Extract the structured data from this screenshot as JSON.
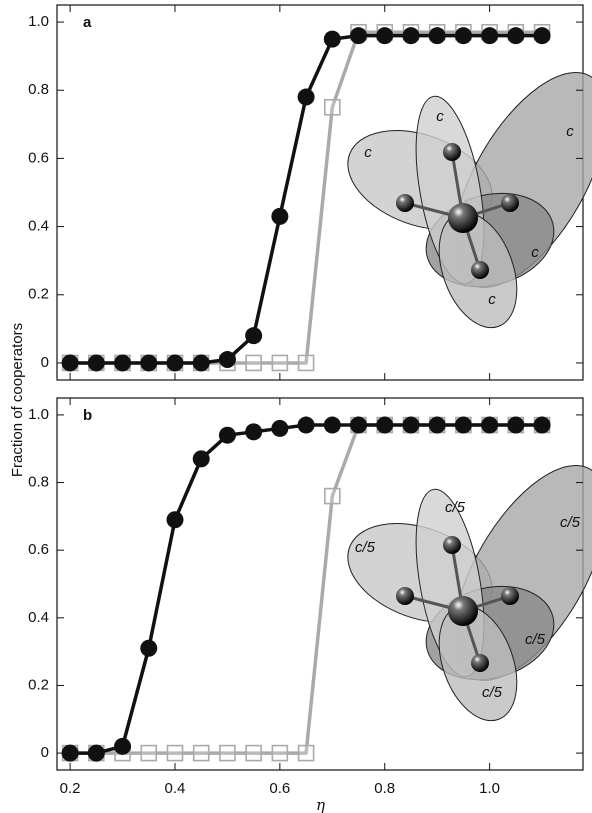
{
  "chart_data": [
    {
      "type": "line",
      "panel_label": "a",
      "ylabel": "Fraction of cooperators",
      "x": [
        0.2,
        0.25,
        0.3,
        0.35,
        0.4,
        0.45,
        0.5,
        0.55,
        0.6,
        0.65,
        0.7,
        0.75,
        0.8,
        0.85,
        0.9,
        0.95,
        1.0,
        1.05,
        1.1
      ],
      "series": [
        {
          "color": "#aaaaaa",
          "marker": "square",
          "values": [
            0,
            0,
            0,
            0,
            0,
            0,
            0,
            0,
            0,
            0,
            0.75,
            0.97,
            0.97,
            0.97,
            0.97,
            0.97,
            0.97,
            0.97,
            0.97
          ]
        },
        {
          "color": "#111111",
          "marker": "circle",
          "values": [
            0,
            0,
            0,
            0,
            0,
            0,
            0.01,
            0.08,
            0.43,
            0.78,
            0.95,
            0.96,
            0.96,
            0.96,
            0.96,
            0.96,
            0.96,
            0.96,
            0.96
          ]
        }
      ],
      "xlim": [
        0.175,
        1.18
      ],
      "ylim": [
        -0.05,
        1.05
      ],
      "xticks": [
        0.2,
        0.4,
        0.6,
        0.8,
        {
          "value": 1,
          "label": "1.0"
        }
      ],
      "yticks": [
        0,
        0.2,
        0.4,
        0.6,
        0.8,
        {
          "value": 1,
          "label": "1.0"
        }
      ],
      "inset_labels": [
        "c",
        "c",
        "c",
        "c",
        "c"
      ]
    },
    {
      "type": "line",
      "panel_label": "b",
      "xlabel": "η",
      "x": [
        0.2,
        0.25,
        0.3,
        0.35,
        0.4,
        0.45,
        0.5,
        0.55,
        0.6,
        0.65,
        0.7,
        0.75,
        0.8,
        0.85,
        0.9,
        0.95,
        1.0,
        1.05,
        1.1
      ],
      "series": [
        {
          "color": "#aaaaaa",
          "marker": "square",
          "values": [
            0,
            0,
            0,
            0,
            0,
            0,
            0,
            0,
            0,
            0,
            0.76,
            0.97,
            0.97,
            0.97,
            0.97,
            0.97,
            0.97,
            0.97,
            0.97
          ]
        },
        {
          "color": "#111111",
          "marker": "circle",
          "values": [
            0,
            0,
            0.02,
            0.31,
            0.69,
            0.87,
            0.94,
            0.95,
            0.96,
            0.97,
            0.97,
            0.97,
            0.97,
            0.97,
            0.97,
            0.97,
            0.97,
            0.97,
            0.97
          ]
        }
      ],
      "xlim": [
        0.175,
        1.18
      ],
      "ylim": [
        -0.05,
        1.05
      ],
      "xticks": [
        0.2,
        0.4,
        0.6,
        0.8,
        {
          "value": 1,
          "label": "1.0"
        }
      ],
      "yticks": [
        0,
        0.2,
        0.4,
        0.6,
        0.8,
        {
          "value": 1,
          "label": "1.0"
        }
      ],
      "inset_labels": [
        "c/5",
        "c/5",
        "c/5",
        "c/5",
        "c/5"
      ]
    }
  ]
}
